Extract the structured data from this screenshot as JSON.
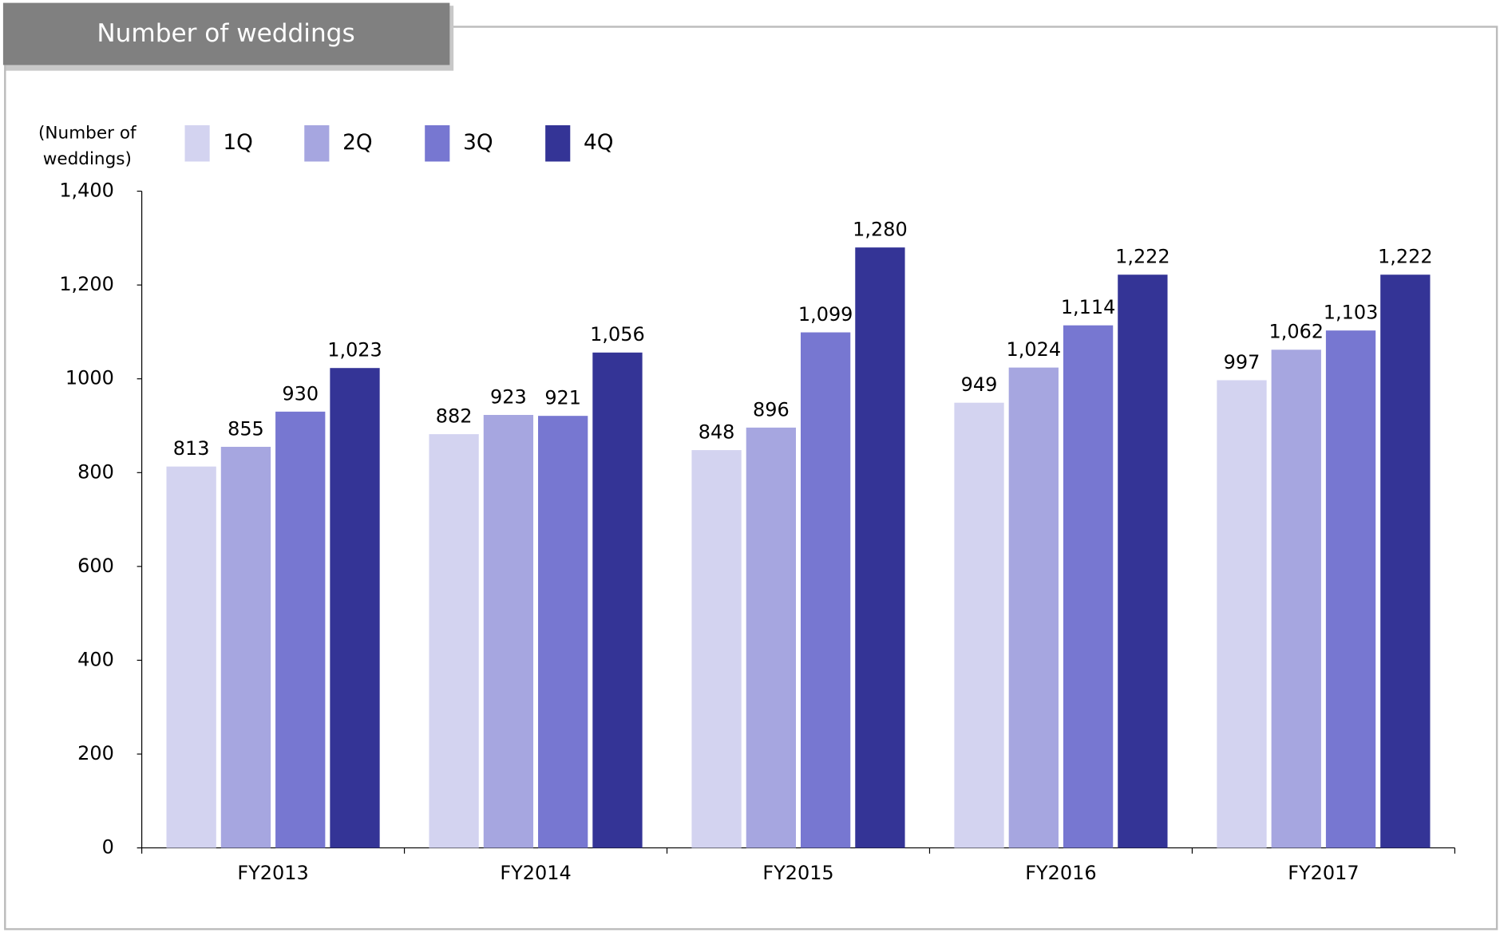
{
  "chart_data": {
    "type": "bar",
    "title": "Number of weddings",
    "y_label": [
      "(Number of",
      "weddings)"
    ],
    "categories": [
      "FY2013",
      "FY2014",
      "FY2015",
      "FY2016",
      "FY2017"
    ],
    "series": [
      {
        "name": "1Q",
        "color": "#d3d3f0",
        "values": [
          813,
          882,
          848,
          949,
          997
        ],
        "value_labels": [
          "813",
          "882",
          "848",
          "949",
          "997"
        ]
      },
      {
        "name": "2Q",
        "color": "#a6a6e0",
        "values": [
          855,
          923,
          896,
          1024,
          1062
        ],
        "value_labels": [
          "855",
          "923",
          "896",
          "1,024",
          "1,062"
        ]
      },
      {
        "name": "3Q",
        "color": "#7777d1",
        "values": [
          930,
          921,
          1099,
          1114,
          1103
        ],
        "value_labels": [
          "930",
          "921",
          "1,099",
          "1,114",
          "1,103"
        ]
      },
      {
        "name": "4Q",
        "color": "#343496",
        "values": [
          1023,
          1056,
          1280,
          1222,
          1222
        ],
        "value_labels": [
          "1,023",
          "1,056",
          "1,280",
          "1,222",
          "1,222"
        ]
      }
    ],
    "ylim": [
      0,
      1400
    ],
    "yticks": [
      0,
      200,
      400,
      600,
      800,
      1000,
      {
        "value": 1200,
        "label": "1,200"
      },
      {
        "value": 1400,
        "label": "1,400"
      }
    ],
    "grid": false
  }
}
